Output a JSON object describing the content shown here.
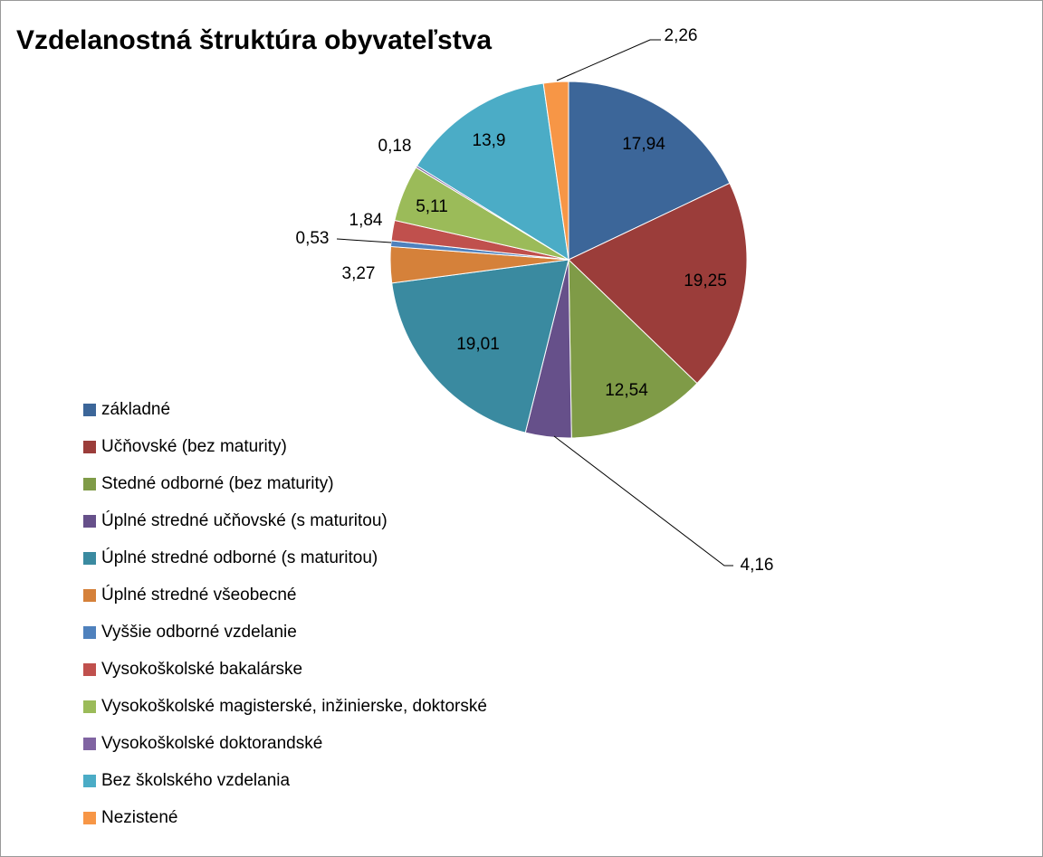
{
  "chart_data": {
    "type": "pie",
    "title": "Vzdelanostná štruktúra obyvateľstva",
    "categories": [
      "základné",
      "Učňovské (bez maturity)",
      "Stedné odborné (bez maturity)",
      "Úplné stredné učňovské (s maturitou)",
      "Úplné stredné odborné (s maturitou)",
      "Úplné stredné všeobecné",
      "Vyššie odborné vzdelanie",
      "Vysokoškolské bakalárske",
      "Vysokoškolské magisterské, inžinierske, doktorské",
      "Vysokoškolské doktorandské",
      "Bez školského vzdelania",
      "Nezistené"
    ],
    "values": [
      17.94,
      19.25,
      12.54,
      4.16,
      19.01,
      3.27,
      0.53,
      1.84,
      5.11,
      0.18,
      13.9,
      2.26
    ],
    "value_labels": [
      "17,94",
      "19,25",
      "12,54",
      "4,16",
      "19,01",
      "3,27",
      "0,53",
      "1,84",
      "5,11",
      "0,18",
      "13,9",
      "2,26"
    ],
    "colors": [
      "#3c6699",
      "#9b3d3a",
      "#7f9b47",
      "#66508a",
      "#3a8aa0",
      "#d5813a",
      "#4f81bd",
      "#c0504d",
      "#9bbb59",
      "#8064a2",
      "#4bacc6",
      "#f79646"
    ],
    "legend": "left"
  }
}
